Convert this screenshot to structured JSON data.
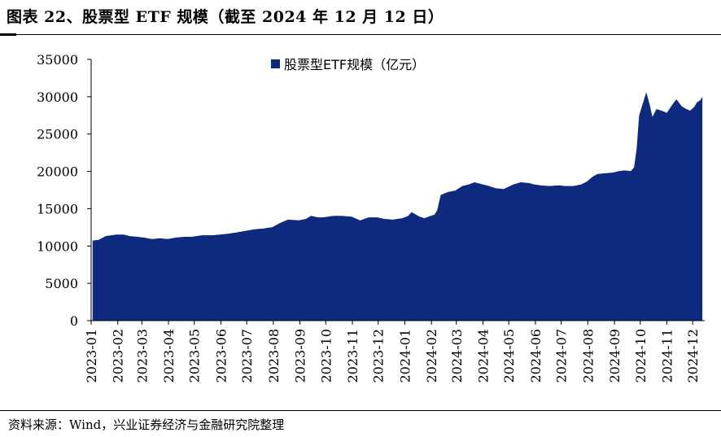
{
  "figure": {
    "title": "图表 22、股票型 ETF 规模（截至 2024 年 12 月 12 日）",
    "source": "资料来源：Wind，兴业证券经济与金融研究院整理"
  },
  "colors": {
    "area": "#0d2a7e"
  },
  "chart_data": {
    "type": "area",
    "title": "",
    "xlabel": "",
    "ylabel": "",
    "ylim": [
      0,
      35000
    ],
    "yticks": [
      0,
      5000,
      10000,
      15000,
      20000,
      25000,
      30000,
      35000
    ],
    "categories": [
      "2023-01",
      "2023-02",
      "2023-03",
      "2023-04",
      "2023-05",
      "2023-06",
      "2023-07",
      "2023-08",
      "2023-09",
      "2023-10",
      "2023-11",
      "2023-12",
      "2024-01",
      "2024-02",
      "2024-03",
      "2024-04",
      "2024-05",
      "2024-06",
      "2024-07",
      "2024-08",
      "2024-09",
      "2024-10",
      "2024-11",
      "2024-12"
    ],
    "legend": {
      "position": "top-center",
      "entries": [
        "股票型ETF规模（亿元）"
      ]
    },
    "grid": false,
    "series": [
      {
        "name": "股票型ETF规模（亿元）",
        "points": [
          [
            "2023-01-03",
            10700
          ],
          [
            "2023-01-10",
            10800
          ],
          [
            "2023-01-18",
            11300
          ],
          [
            "2023-01-30",
            11500
          ],
          [
            "2023-02-08",
            11500
          ],
          [
            "2023-02-15",
            11300
          ],
          [
            "2023-02-24",
            11200
          ],
          [
            "2023-03-03",
            11100
          ],
          [
            "2023-03-13",
            10900
          ],
          [
            "2023-03-22",
            11000
          ],
          [
            "2023-03-31",
            10900
          ],
          [
            "2023-04-10",
            11100
          ],
          [
            "2023-04-20",
            11200
          ],
          [
            "2023-04-28",
            11200
          ],
          [
            "2023-05-10",
            11400
          ],
          [
            "2023-05-22",
            11400
          ],
          [
            "2023-05-31",
            11500
          ],
          [
            "2023-06-09",
            11600
          ],
          [
            "2023-06-20",
            11800
          ],
          [
            "2023-06-30",
            12000
          ],
          [
            "2023-07-10",
            12200
          ],
          [
            "2023-07-20",
            12300
          ],
          [
            "2023-07-31",
            12500
          ],
          [
            "2023-08-08",
            13000
          ],
          [
            "2023-08-18",
            13500
          ],
          [
            "2023-08-31",
            13400
          ],
          [
            "2023-09-08",
            13600
          ],
          [
            "2023-09-14",
            14000
          ],
          [
            "2023-09-22",
            13800
          ],
          [
            "2023-09-28",
            13800
          ],
          [
            "2023-10-10",
            14000
          ],
          [
            "2023-10-20",
            14000
          ],
          [
            "2023-10-31",
            13900
          ],
          [
            "2023-11-06",
            13600
          ],
          [
            "2023-11-10",
            13400
          ],
          [
            "2023-11-20",
            13800
          ],
          [
            "2023-11-30",
            13800
          ],
          [
            "2023-12-08",
            13600
          ],
          [
            "2023-12-18",
            13500
          ],
          [
            "2023-12-29",
            13700
          ],
          [
            "2024-01-05",
            14000
          ],
          [
            "2024-01-09",
            14500
          ],
          [
            "2024-01-18",
            13900
          ],
          [
            "2024-01-24",
            13700
          ],
          [
            "2024-01-31",
            14000
          ],
          [
            "2024-02-05",
            14200
          ],
          [
            "2024-02-08",
            14800
          ],
          [
            "2024-02-12",
            16800
          ],
          [
            "2024-02-20",
            17200
          ],
          [
            "2024-02-29",
            17400
          ],
          [
            "2024-03-08",
            18000
          ],
          [
            "2024-03-15",
            18200
          ],
          [
            "2024-03-22",
            18500
          ],
          [
            "2024-03-29",
            18300
          ],
          [
            "2024-04-08",
            18000
          ],
          [
            "2024-04-16",
            17700
          ],
          [
            "2024-04-25",
            17600
          ],
          [
            "2024-05-06",
            18200
          ],
          [
            "2024-05-15",
            18500
          ],
          [
            "2024-05-24",
            18400
          ],
          [
            "2024-05-31",
            18200
          ],
          [
            "2024-06-07",
            18100
          ],
          [
            "2024-06-17",
            18000
          ],
          [
            "2024-06-28",
            18100
          ],
          [
            "2024-07-05",
            18000
          ],
          [
            "2024-07-15",
            18000
          ],
          [
            "2024-07-24",
            18200
          ],
          [
            "2024-07-31",
            18600
          ],
          [
            "2024-08-06",
            19200
          ],
          [
            "2024-08-12",
            19600
          ],
          [
            "2024-08-20",
            19700
          ],
          [
            "2024-08-30",
            19800
          ],
          [
            "2024-09-06",
            20000
          ],
          [
            "2024-09-13",
            20100
          ],
          [
            "2024-09-20",
            20000
          ],
          [
            "2024-09-24",
            20500
          ],
          [
            "2024-09-27",
            23000
          ],
          [
            "2024-09-30",
            27500
          ],
          [
            "2024-10-08",
            30500
          ],
          [
            "2024-10-12",
            28800
          ],
          [
            "2024-10-15",
            27200
          ],
          [
            "2024-10-20",
            28300
          ],
          [
            "2024-10-28",
            28000
          ],
          [
            "2024-11-01",
            27800
          ],
          [
            "2024-11-08",
            29000
          ],
          [
            "2024-11-12",
            29600
          ],
          [
            "2024-11-18",
            28700
          ],
          [
            "2024-11-22",
            28400
          ],
          [
            "2024-11-28",
            28100
          ],
          [
            "2024-12-03",
            28600
          ],
          [
            "2024-12-06",
            29200
          ],
          [
            "2024-12-10",
            29500
          ],
          [
            "2024-12-12",
            29900
          ]
        ]
      }
    ]
  }
}
